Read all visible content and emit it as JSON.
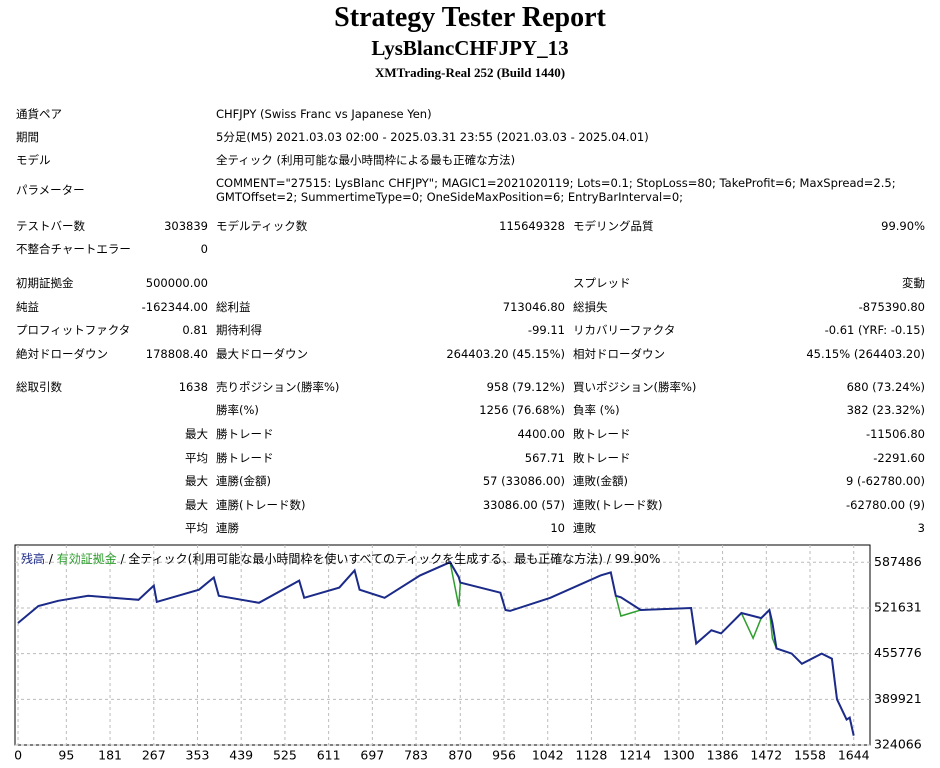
{
  "header": {
    "title": "Strategy Tester Report",
    "subtitle": "LysBlancCHFJPY_13",
    "server": "XMTrading-Real 252 (Build 1440)"
  },
  "info": [
    [
      "通貨ペア",
      "CHFJPY (Swiss Franc vs Japanese Yen)"
    ],
    [
      "期間",
      "5分足(M5) 2021.03.03 02:00 - 2025.03.31 23:55 (2021.03.03 - 2025.04.01)"
    ],
    [
      "モデル",
      "全ティック (利用可能な最小時間枠による最も正確な方法)"
    ],
    [
      "パラメーター",
      "COMMENT=\"27515: LysBlanc CHFJPY\"; MAGIC1=2021020119; Lots=0.1; StopLoss=80; TakeProfit=6; MaxSpread=2.5; GMTOffset=2; SummertimeType=0; OneSideMaxPosition=6; EntryBarInterval=0;"
    ]
  ],
  "table": {
    "rows": [
      [
        "テストバー数",
        "303839",
        "モデルティック数",
        "115649328",
        "モデリング品質",
        "99.90%"
      ],
      [
        "不整合チャートエラー",
        "0",
        null,
        null,
        null,
        null
      ],
      [
        "初期証拠金",
        "500000.00",
        null,
        null,
        "スプレッド",
        "変動"
      ],
      [
        "純益",
        "-162344.00",
        "総利益",
        "713046.80",
        "総損失",
        "-875390.80"
      ],
      [
        "プロフィットファクタ",
        "0.81",
        "期待利得",
        "-99.11",
        "リカバリーファクタ",
        "-0.61 (YRF: -0.15)"
      ],
      [
        "絶対ドローダウン",
        "178808.40",
        "最大ドローダウン",
        "264403.20 (45.15%)",
        "相対ドローダウン",
        "45.15% (264403.20)"
      ],
      [
        "総取引数",
        "1638",
        "売りポジション(勝率%)",
        "958 (79.12%)",
        "買いポジション(勝率%)",
        "680 (73.24%)"
      ],
      [
        null,
        null,
        "勝率(%)",
        "1256 (76.68%)",
        "負率 (%)",
        "382 (23.32%)"
      ],
      [
        null,
        "最大",
        "勝トレード",
        "4400.00",
        "敗トレード",
        "-11506.80"
      ],
      [
        null,
        "平均",
        "勝トレード",
        "567.71",
        "敗トレード",
        "-2291.60"
      ],
      [
        null,
        "最大",
        "連勝(金額)",
        "57 (33086.00)",
        "連敗(金額)",
        "9 (-62780.00)"
      ],
      [
        null,
        "最大",
        "連勝(トレード数)",
        "33086.00 (57)",
        "連敗(トレード数)",
        "-62780.00 (9)"
      ],
      [
        null,
        "平均",
        "連勝",
        "10",
        "連敗",
        "3"
      ]
    ]
  },
  "chart_data": {
    "type": "line",
    "legend": {
      "model": "全ティック(利用可能な最小時間枠を使いすべてのティックを生成する、最も正確な方法)",
      "quality": "99.90%"
    },
    "grid": true,
    "x": [
      0,
      40,
      79,
      138,
      237,
      267,
      273,
      356,
      385,
      395,
      474,
      553,
      563,
      632,
      662,
      672,
      721,
      791,
      850,
      867,
      870,
      949,
      959,
      968,
      1047,
      1146,
      1166,
      1176,
      1186,
      1225,
      1324,
      1334,
      1364,
      1383,
      1423,
      1446,
      1462,
      1478,
      1484,
      1492,
      1522,
      1542,
      1581,
      1601,
      1611,
      1630,
      1636,
      1644
    ],
    "series": [
      {
        "name": "有効証拠金",
        "color": "#2e9e2e",
        "values": [
          500000,
          524500,
          531900,
          539200,
          533300,
          553800,
          530400,
          548000,
          565500,
          539200,
          529000,
          561100,
          536300,
          550900,
          575800,
          548000,
          536300,
          568500,
          587500,
          524000,
          558200,
          543600,
          518700,
          517300,
          536300,
          568500,
          572900,
          539200,
          510000,
          518700,
          521600,
          470400,
          489400,
          485000,
          514300,
          478000,
          507000,
          518700,
          478000,
          463100,
          455800,
          441100,
          455800,
          448500,
          389900,
          360700,
          363600,
          337656
        ]
      },
      {
        "name": "残高",
        "color": "#1c2a8a",
        "values": [
          500000,
          524500,
          531900,
          539200,
          533300,
          553800,
          530400,
          548000,
          565500,
          539200,
          529000,
          561100,
          536300,
          550900,
          575800,
          548000,
          536300,
          568500,
          587500,
          566000,
          558200,
          543600,
          518700,
          517300,
          536300,
          568500,
          572900,
          539200,
          537000,
          518700,
          521600,
          470400,
          489400,
          485000,
          514300,
          510000,
          507000,
          518700,
          500000,
          463100,
          455800,
          441100,
          455800,
          448500,
          389900,
          360700,
          363600,
          337656
        ]
      }
    ],
    "xlim": [
      -6,
      1676
    ],
    "xticks": [
      0,
      95,
      181,
      267,
      353,
      439,
      525,
      611,
      697,
      783,
      870,
      956,
      1042,
      1128,
      1214,
      1300,
      1386,
      1472,
      1558,
      1644
    ],
    "ylim": [
      324066,
      612365
    ],
    "yticks": [
      324066,
      389921,
      455776,
      521631,
      587486
    ]
  }
}
